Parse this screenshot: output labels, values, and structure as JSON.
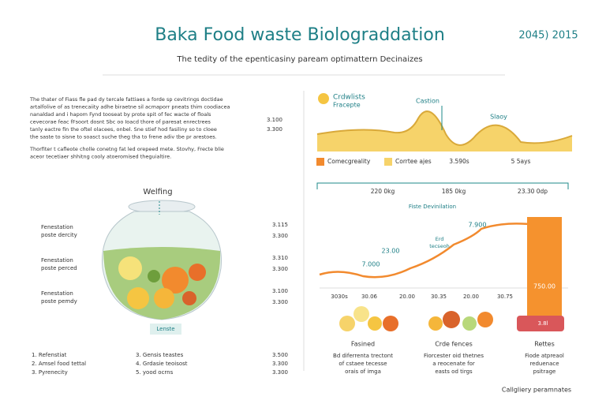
{
  "header": {
    "title": "Baka Food waste Biolograddation",
    "date": "2045) 2015",
    "subtitle": "The tedity of the epenticasiny paream optimattern Decinaizes"
  },
  "intro": {
    "lines": [
      "The thater of Fiass fle pad dy tercale fattiaes a forde sp cevitrings doctidae",
      "artalfolive of as trenecaiity adhe biraetne sil acmaporr pneats thim coodiacea",
      "nanaldad and i hapom Fynd tooseat by prote spit of fec wacte of floals",
      "cevecorae feac fFsoort dosnt Sbc oo Ioacd thore of paresat enrectrees",
      "tanly eactre fin the oftel olacees, onbel. Sne stief hod fasiliny so to cloee",
      "the saste to sisne to soasct suche theg tha to frene adiv tbe pr arestoes.",
      "Thorfiter t cafleote cholle conetng fat led orepeed mete. Stovhy, Frecte blie",
      "aceor tecetiaer shhitng cooly atoeromised theguialtire."
    ],
    "numbers": [
      "3.100",
      "3.300"
    ]
  },
  "jar": {
    "title": "Welfing",
    "labels": [
      [
        "Fenestation",
        "poste dercity"
      ],
      [
        "Fenestation",
        "poste perced"
      ],
      [
        "Fenestation",
        "poste pemdy"
      ]
    ],
    "numbers": [
      [
        "3.115",
        "3.300"
      ],
      [
        "3.310",
        "3.300"
      ],
      [
        "3.100",
        "3.300"
      ]
    ],
    "caption": "Lenste"
  },
  "list": {
    "left": [
      "1. Refenstiat",
      "2. Amsel food tettal",
      "3. Pyrenecity"
    ],
    "middle": [
      "3. Gensis teastes",
      "4. Grdasie teoisost",
      "5. yood ocrns"
    ],
    "numbers": [
      "3.500",
      "3.300",
      "3.300"
    ]
  },
  "wave": {
    "title": [
      "Crdwlists",
      "Fracepte"
    ],
    "peaks": [
      "Castion",
      "Slaoy"
    ],
    "legend": [
      "Comecgreality",
      "Corrtee ajes"
    ],
    "notes": [
      "3.590s",
      "5 5ays"
    ]
  },
  "trend": {
    "ranges": [
      "220 0kg",
      "185 0kg",
      "23.30 0dp"
    ],
    "title": "Fiste Devinilation",
    "labels": [
      "7.900",
      "23.00",
      "7.000"
    ],
    "note": [
      "Erd",
      "tecseoh"
    ],
    "bar_labels": [
      "750.00",
      "3.8l"
    ],
    "axis": [
      "3030s",
      "30.06",
      "20.00",
      "30.35",
      "20.00",
      "30.75"
    ]
  },
  "groups": [
    {
      "name": "Fasined",
      "text": [
        "Bd diferrenta trectont",
        "of cstaee tecesse",
        "orais of imga"
      ]
    },
    {
      "name": "Crde fences",
      "text": [
        "Fiorcester oid thetnes",
        "a reocenate for",
        "easts od tirgs"
      ]
    },
    {
      "name": "Rettes",
      "text": [
        "Fiode atpreaol",
        "reduenace",
        "psitrage"
      ]
    }
  ],
  "footer": "Callgliery peramnates"
}
